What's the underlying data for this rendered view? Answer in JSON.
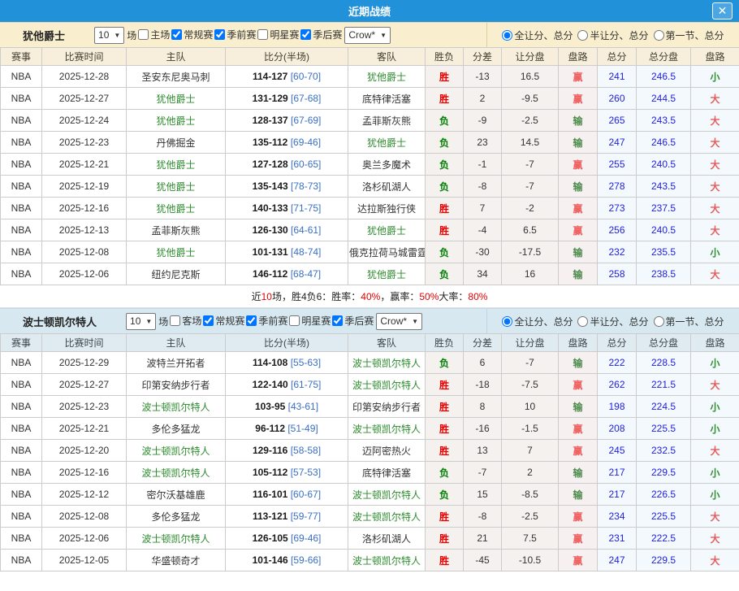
{
  "window": {
    "title": "近期战绩",
    "close_icon": "✕"
  },
  "colors": {
    "titlebar_blue": "#2191d9",
    "section1_beige": "#f9eecd",
    "section2_lightblue": "#d7e8f0",
    "win_red": "#e50000",
    "loss_green": "#008000",
    "handicap_win_red": "#ef6161",
    "handicap_lose_green": "#4d8b4d",
    "total_blue": "#2121df",
    "team_green": "#2e8b2e"
  },
  "sections": [
    {
      "team": "犹他爵士",
      "games_select": "10",
      "games_suffix": "场",
      "checkboxes": [
        {
          "label": "主场",
          "checked": false
        },
        {
          "label": "常规赛",
          "checked": true
        },
        {
          "label": "季前赛",
          "checked": true
        },
        {
          "label": "明星赛",
          "checked": false
        },
        {
          "label": "季后赛",
          "checked": true
        }
      ],
      "bookmaker_select": "Crow*",
      "radios": [
        {
          "label": "全让分、总分",
          "selected": true
        },
        {
          "label": "半让分、总分",
          "selected": false
        },
        {
          "label": "第一节、总分",
          "selected": false
        }
      ],
      "columns": [
        "赛事",
        "比赛时间",
        "主队",
        "比分(半场)",
        "客队",
        "胜负",
        "分差",
        "让分盘",
        "盘路",
        "总分",
        "总分盘",
        "盘路"
      ],
      "rows": [
        {
          "league": "NBA",
          "date": "2025-12-28",
          "home": "圣安东尼奥马刺",
          "home_active": false,
          "score": "114-127",
          "half": "[60-70]",
          "away": "犹他爵士",
          "away_active": true,
          "result": "胜",
          "diff": "-13",
          "handicap": "16.5",
          "handicap_result": "赢",
          "total": "241",
          "total_line": "246.5",
          "total_result": "小"
        },
        {
          "league": "NBA",
          "date": "2025-12-27",
          "home": "犹他爵士",
          "home_active": true,
          "score": "131-129",
          "half": "[67-68]",
          "away": "底特律活塞",
          "away_active": false,
          "result": "胜",
          "diff": "2",
          "handicap": "-9.5",
          "handicap_result": "赢",
          "total": "260",
          "total_line": "244.5",
          "total_result": "大"
        },
        {
          "league": "NBA",
          "date": "2025-12-24",
          "home": "犹他爵士",
          "home_active": true,
          "score": "128-137",
          "half": "[67-69]",
          "away": "孟菲斯灰熊",
          "away_active": false,
          "result": "负",
          "diff": "-9",
          "handicap": "-2.5",
          "handicap_result": "输",
          "total": "265",
          "total_line": "243.5",
          "total_result": "大"
        },
        {
          "league": "NBA",
          "date": "2025-12-23",
          "home": "丹佛掘金",
          "home_active": false,
          "score": "135-112",
          "half": "[69-46]",
          "away": "犹他爵士",
          "away_active": true,
          "result": "负",
          "diff": "23",
          "handicap": "14.5",
          "handicap_result": "输",
          "total": "247",
          "total_line": "246.5",
          "total_result": "大"
        },
        {
          "league": "NBA",
          "date": "2025-12-21",
          "home": "犹他爵士",
          "home_active": true,
          "score": "127-128",
          "half": "[60-65]",
          "away": "奥兰多魔术",
          "away_active": false,
          "result": "负",
          "diff": "-1",
          "handicap": "-7",
          "handicap_result": "赢",
          "total": "255",
          "total_line": "240.5",
          "total_result": "大"
        },
        {
          "league": "NBA",
          "date": "2025-12-19",
          "home": "犹他爵士",
          "home_active": true,
          "score": "135-143",
          "half": "[78-73]",
          "away": "洛杉矶湖人",
          "away_active": false,
          "result": "负",
          "diff": "-8",
          "handicap": "-7",
          "handicap_result": "输",
          "total": "278",
          "total_line": "243.5",
          "total_result": "大"
        },
        {
          "league": "NBA",
          "date": "2025-12-16",
          "home": "犹他爵士",
          "home_active": true,
          "score": "140-133",
          "half": "[71-75]",
          "away": "达拉斯独行侠",
          "away_active": false,
          "result": "胜",
          "diff": "7",
          "handicap": "-2",
          "handicap_result": "赢",
          "total": "273",
          "total_line": "237.5",
          "total_result": "大"
        },
        {
          "league": "NBA",
          "date": "2025-12-13",
          "home": "孟菲斯灰熊",
          "home_active": false,
          "score": "126-130",
          "half": "[64-61]",
          "away": "犹他爵士",
          "away_active": true,
          "result": "胜",
          "diff": "-4",
          "handicap": "6.5",
          "handicap_result": "赢",
          "total": "256",
          "total_line": "240.5",
          "total_result": "大"
        },
        {
          "league": "NBA",
          "date": "2025-12-08",
          "home": "犹他爵士",
          "home_active": true,
          "score": "101-131",
          "half": "[48-74]",
          "away": "俄克拉荷马城雷霆",
          "away_active": false,
          "result": "负",
          "diff": "-30",
          "handicap": "-17.5",
          "handicap_result": "输",
          "total": "232",
          "total_line": "235.5",
          "total_result": "小"
        },
        {
          "league": "NBA",
          "date": "2025-12-06",
          "home": "纽约尼克斯",
          "home_active": false,
          "score": "146-112",
          "half": "[68-47]",
          "away": "犹他爵士",
          "away_active": true,
          "result": "负",
          "diff": "34",
          "handicap": "16",
          "handicap_result": "输",
          "total": "258",
          "total_line": "238.5",
          "total_result": "大"
        }
      ],
      "summary_segments": [
        {
          "text": "近 ",
          "red": false
        },
        {
          "text": "10",
          "red": true
        },
        {
          "text": " 场，胜4负6：胜率：",
          "red": false
        },
        {
          "text": "40%",
          "red": true
        },
        {
          "text": "，赢率：",
          "red": false
        },
        {
          "text": "50%",
          "red": true
        },
        {
          "text": " 大率：",
          "red": false
        },
        {
          "text": "80%",
          "red": true
        }
      ]
    },
    {
      "team": "波士顿凯尔特人",
      "games_select": "10",
      "games_suffix": "场",
      "checkboxes": [
        {
          "label": "客场",
          "checked": false
        },
        {
          "label": "常规赛",
          "checked": true
        },
        {
          "label": "季前赛",
          "checked": true
        },
        {
          "label": "明星赛",
          "checked": false
        },
        {
          "label": "季后赛",
          "checked": true
        }
      ],
      "bookmaker_select": "Crow*",
      "radios": [
        {
          "label": "全让分、总分",
          "selected": true
        },
        {
          "label": "半让分、总分",
          "selected": false
        },
        {
          "label": "第一节、总分",
          "selected": false
        }
      ],
      "columns": [
        "赛事",
        "比赛时间",
        "主队",
        "比分(半场)",
        "客队",
        "胜负",
        "分差",
        "让分盘",
        "盘路",
        "总分",
        "总分盘",
        "盘路"
      ],
      "rows": [
        {
          "league": "NBA",
          "date": "2025-12-29",
          "home": "波特兰开拓者",
          "home_active": false,
          "score": "114-108",
          "half": "[55-63]",
          "away": "波士顿凯尔特人",
          "away_active": true,
          "result": "负",
          "diff": "6",
          "handicap": "-7",
          "handicap_result": "输",
          "total": "222",
          "total_line": "228.5",
          "total_result": "小"
        },
        {
          "league": "NBA",
          "date": "2025-12-27",
          "home": "印第安纳步行者",
          "home_active": false,
          "score": "122-140",
          "half": "[61-75]",
          "away": "波士顿凯尔特人",
          "away_active": true,
          "result": "胜",
          "diff": "-18",
          "handicap": "-7.5",
          "handicap_result": "赢",
          "total": "262",
          "total_line": "221.5",
          "total_result": "大"
        },
        {
          "league": "NBA",
          "date": "2025-12-23",
          "home": "波士顿凯尔特人",
          "home_active": true,
          "score": "103-95",
          "half": "[43-61]",
          "away": "印第安纳步行者",
          "away_active": false,
          "result": "胜",
          "diff": "8",
          "handicap": "10",
          "handicap_result": "输",
          "total": "198",
          "total_line": "224.5",
          "total_result": "小"
        },
        {
          "league": "NBA",
          "date": "2025-12-21",
          "home": "多伦多猛龙",
          "home_active": false,
          "score": "96-112",
          "half": "[51-49]",
          "away": "波士顿凯尔特人",
          "away_active": true,
          "result": "胜",
          "diff": "-16",
          "handicap": "-1.5",
          "handicap_result": "赢",
          "total": "208",
          "total_line": "225.5",
          "total_result": "小"
        },
        {
          "league": "NBA",
          "date": "2025-12-20",
          "home": "波士顿凯尔特人",
          "home_active": true,
          "score": "129-116",
          "half": "[58-58]",
          "away": "迈阿密热火",
          "away_active": false,
          "result": "胜",
          "diff": "13",
          "handicap": "7",
          "handicap_result": "赢",
          "total": "245",
          "total_line": "232.5",
          "total_result": "大"
        },
        {
          "league": "NBA",
          "date": "2025-12-16",
          "home": "波士顿凯尔特人",
          "home_active": true,
          "score": "105-112",
          "half": "[57-53]",
          "away": "底特律活塞",
          "away_active": false,
          "result": "负",
          "diff": "-7",
          "handicap": "2",
          "handicap_result": "输",
          "total": "217",
          "total_line": "229.5",
          "total_result": "小"
        },
        {
          "league": "NBA",
          "date": "2025-12-12",
          "home": "密尔沃基雄鹿",
          "home_active": false,
          "score": "116-101",
          "half": "[60-67]",
          "away": "波士顿凯尔特人",
          "away_active": true,
          "result": "负",
          "diff": "15",
          "handicap": "-8.5",
          "handicap_result": "输",
          "total": "217",
          "total_line": "226.5",
          "total_result": "小"
        },
        {
          "league": "NBA",
          "date": "2025-12-08",
          "home": "多伦多猛龙",
          "home_active": false,
          "score": "113-121",
          "half": "[59-77]",
          "away": "波士顿凯尔特人",
          "away_active": true,
          "result": "胜",
          "diff": "-8",
          "handicap": "-2.5",
          "handicap_result": "赢",
          "total": "234",
          "total_line": "225.5",
          "total_result": "大"
        },
        {
          "league": "NBA",
          "date": "2025-12-06",
          "home": "波士顿凯尔特人",
          "home_active": true,
          "score": "126-105",
          "half": "[69-46]",
          "away": "洛杉矶湖人",
          "away_active": false,
          "result": "胜",
          "diff": "21",
          "handicap": "7.5",
          "handicap_result": "赢",
          "total": "231",
          "total_line": "222.5",
          "total_result": "大"
        },
        {
          "league": "NBA",
          "date": "2025-12-05",
          "home": "华盛顿奇才",
          "home_active": false,
          "score": "101-146",
          "half": "[59-66]",
          "away": "波士顿凯尔特人",
          "away_active": true,
          "result": "胜",
          "diff": "-45",
          "handicap": "-10.5",
          "handicap_result": "赢",
          "total": "247",
          "total_line": "229.5",
          "total_result": "大"
        }
      ],
      "summary_segments": null
    }
  ]
}
